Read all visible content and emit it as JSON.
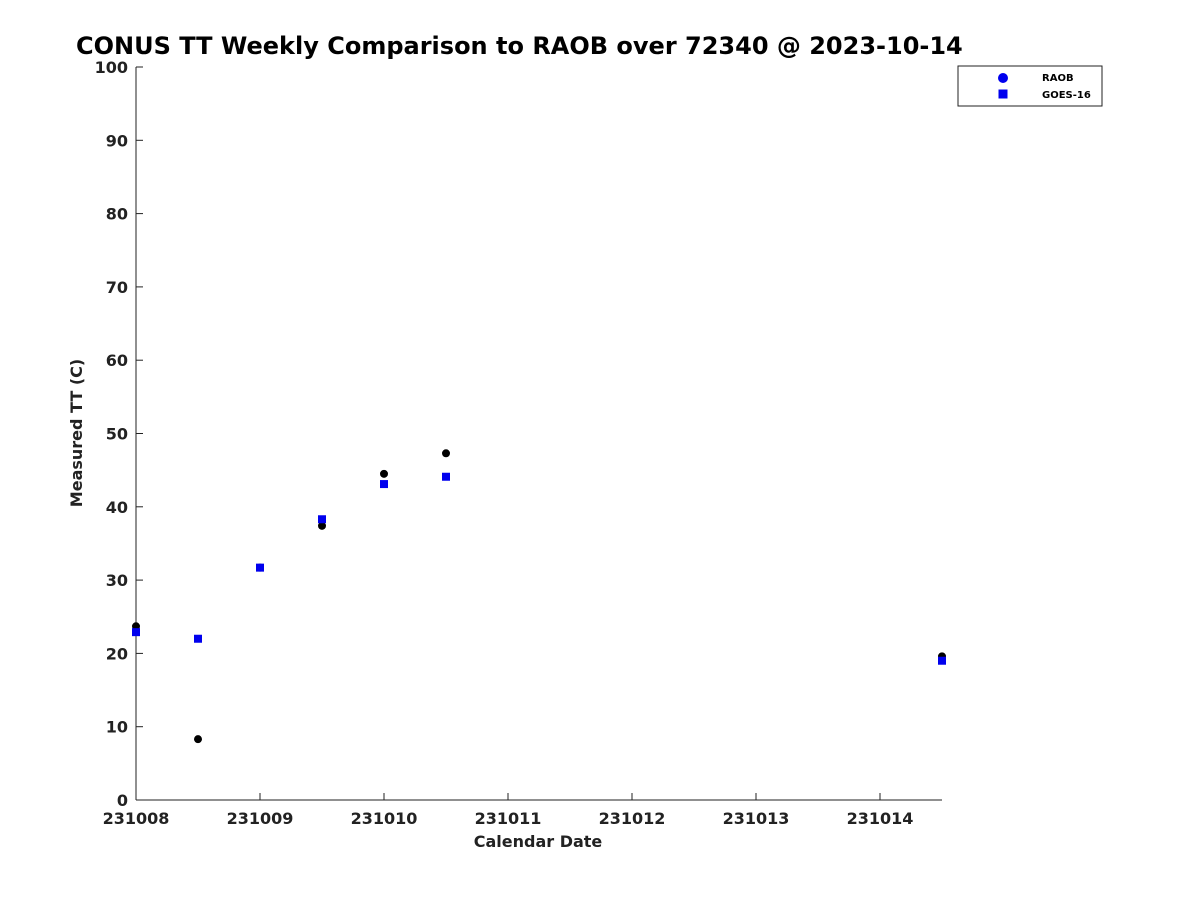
{
  "chart_data": {
    "type": "scatter",
    "title": "CONUS TT Weekly Comparison to RAOB over 72340 @ 2023-10-14",
    "xlabel": "Calendar Date",
    "ylabel": "Measured TT (C)",
    "x_ticks": [
      "231008",
      "231009",
      "231010",
      "231011",
      "231012",
      "231013",
      "231014"
    ],
    "x_tick_values": [
      0,
      1,
      2,
      3,
      4,
      5,
      6
    ],
    "xlim": [
      0,
      6.5
    ],
    "ylim": [
      0,
      100
    ],
    "y_ticks": [
      0,
      10,
      20,
      30,
      40,
      50,
      60,
      70,
      80,
      90,
      100
    ],
    "grid": false,
    "legend_position": "top-right",
    "series": [
      {
        "name": "RAOB",
        "marker": "circle",
        "marker_color": "#0000ee",
        "point_color": "#000000",
        "x": [
          0,
          0.5,
          1.0,
          1.5,
          2.0,
          2.5,
          6.5
        ],
        "values": [
          23.7,
          8.3,
          31.7,
          37.4,
          44.5,
          47.3,
          19.6
        ]
      },
      {
        "name": "GOES-16",
        "marker": "square",
        "marker_color": "#0000ee",
        "point_color": "#0000ee",
        "x": [
          0,
          0.5,
          1.0,
          1.5,
          2.0,
          2.5,
          6.5
        ],
        "values": [
          22.9,
          22.0,
          31.7,
          38.3,
          43.1,
          44.1,
          19.0
        ]
      }
    ]
  }
}
